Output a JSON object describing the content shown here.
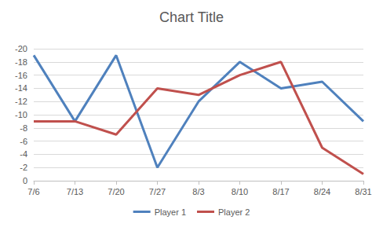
{
  "chart_data": {
    "type": "line",
    "title": "Chart Title",
    "categories": [
      "7/6",
      "7/13",
      "7/20",
      "7/27",
      "8/3",
      "8/10",
      "8/17",
      "8/24",
      "8/31"
    ],
    "series": [
      {
        "name": "Player 1",
        "color": "#4f81bd",
        "values": [
          -19,
          -9,
          -19,
          -2,
          -12,
          -18,
          -14,
          -15,
          -9
        ]
      },
      {
        "name": "Player 2",
        "color": "#c0504d",
        "values": [
          -9,
          -9,
          -7,
          -14,
          -13,
          -16,
          -18,
          -5,
          -1
        ]
      }
    ],
    "ylim": [
      0,
      -20
    ],
    "yticks": [
      -20,
      -18,
      -16,
      -14,
      -12,
      -10,
      -8,
      -6,
      -4,
      -2,
      0
    ],
    "grid": true,
    "legend": "bottom"
  }
}
